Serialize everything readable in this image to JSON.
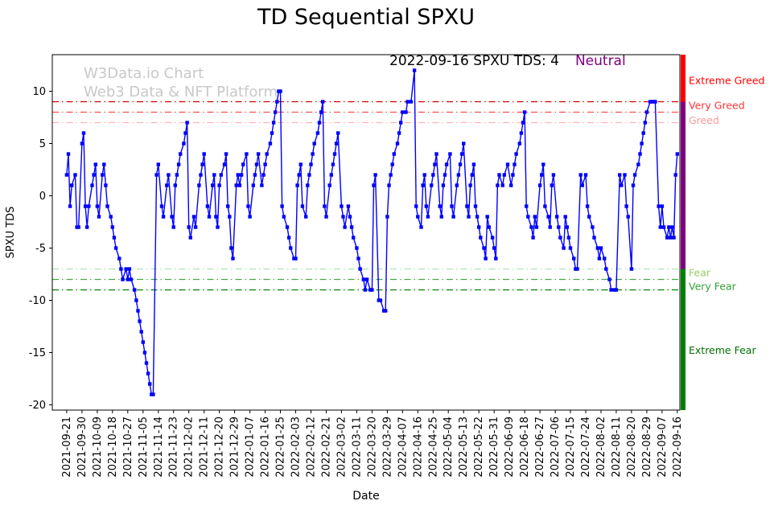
{
  "title": "TD Sequential SPXU",
  "watermark": {
    "line1": "W3Data.io Chart",
    "line2": "Web3 Data & NFT Platform"
  },
  "annotation": {
    "text": "2022-09-16 SPXU TDS: 4",
    "status": "Neutral",
    "status_color": "#800080"
  },
  "chart_data": {
    "type": "line",
    "title": "TD Sequential SPXU",
    "xlabel": "Date",
    "ylabel": "SPXU TDS",
    "ylim": [
      -20.5,
      13.5
    ],
    "yticks": [
      -20,
      -15,
      -10,
      -5,
      0,
      5,
      10
    ],
    "x_start_date": "2021-09-21",
    "tick_interval_days": 9,
    "x_tick_labels": [
      "2021-09-21",
      "2021-09-30",
      "2021-10-09",
      "2021-10-18",
      "2021-10-27",
      "2021-11-05",
      "2021-11-14",
      "2021-11-23",
      "2021-12-02",
      "2021-12-11",
      "2021-12-20",
      "2021-12-29",
      "2022-01-07",
      "2022-01-16",
      "2022-01-25",
      "2022-02-03",
      "2022-02-12",
      "2022-02-21",
      "2022-03-02",
      "2022-03-11",
      "2022-03-20",
      "2022-03-29",
      "2022-04-07",
      "2022-04-16",
      "2022-04-25",
      "2022-05-04",
      "2022-05-13",
      "2022-05-22",
      "2022-05-31",
      "2022-06-09",
      "2022-06-18",
      "2022-06-27",
      "2022-07-06",
      "2022-07-15",
      "2022-07-24",
      "2022-08-02",
      "2022-08-11",
      "2022-08-20",
      "2022-08-29",
      "2022-09-07",
      "2022-09-16"
    ],
    "line_color": "#0000ff",
    "marker": "square",
    "legend": "none",
    "grid": false,
    "thresholds": [
      {
        "value": 9,
        "color": "#cc0000"
      },
      {
        "value": 8,
        "color": "#ff4d4d"
      },
      {
        "value": 7,
        "color": "#ffb3b3"
      },
      {
        "value": -7,
        "color": "#b3e0b3"
      },
      {
        "value": -8,
        "color": "#44aa44"
      },
      {
        "value": -9,
        "color": "#008000"
      }
    ],
    "zone_labels": [
      {
        "text": "Extreme Greed",
        "value": 11.0,
        "color": "#ff0000"
      },
      {
        "text": "Very Greed",
        "value": 8.6,
        "color": "#ff3333"
      },
      {
        "text": "Greed",
        "value": 7.2,
        "color": "#ff9999"
      },
      {
        "text": "Fear",
        "value": -7.4,
        "color": "#99cc66"
      },
      {
        "text": "Very Fear",
        "value": -8.7,
        "color": "#33a033"
      },
      {
        "text": "Extreme Fear",
        "value": -14.8,
        "color": "#007000"
      }
    ],
    "side_bar_segments": [
      {
        "from": 13.5,
        "to": 9,
        "color": "#ff0000"
      },
      {
        "from": 9,
        "to": -7,
        "color": "#800080"
      },
      {
        "from": -7,
        "to": -20.5,
        "color": "#008000"
      }
    ],
    "points": [
      [
        0,
        2
      ],
      [
        1,
        4
      ],
      [
        2,
        -1
      ],
      [
        3,
        1
      ],
      [
        5,
        2
      ],
      [
        6,
        -3
      ],
      [
        7,
        -3
      ],
      [
        9,
        5
      ],
      [
        10,
        6
      ],
      [
        11,
        -1
      ],
      [
        12,
        -3
      ],
      [
        13,
        -1
      ],
      [
        15,
        1
      ],
      [
        16,
        2
      ],
      [
        17,
        3
      ],
      [
        18,
        -1
      ],
      [
        19,
        -2
      ],
      [
        21,
        2
      ],
      [
        22,
        3
      ],
      [
        23,
        1
      ],
      [
        24,
        -1
      ],
      [
        26,
        -2
      ],
      [
        27,
        -3
      ],
      [
        28,
        -4
      ],
      [
        29,
        -5
      ],
      [
        31,
        -6
      ],
      [
        32,
        -7
      ],
      [
        33,
        -8
      ],
      [
        35,
        -7
      ],
      [
        36,
        -8
      ],
      [
        37,
        -7
      ],
      [
        38,
        -8
      ],
      [
        40,
        -9
      ],
      [
        41,
        -10
      ],
      [
        42,
        -11
      ],
      [
        43,
        -12
      ],
      [
        44,
        -13
      ],
      [
        45,
        -14
      ],
      [
        46,
        -15
      ],
      [
        47,
        -16
      ],
      [
        48,
        -17
      ],
      [
        49,
        -18
      ],
      [
        50,
        -19
      ],
      [
        51,
        -19
      ],
      [
        53,
        2
      ],
      [
        54,
        3
      ],
      [
        56,
        -1
      ],
      [
        57,
        -2
      ],
      [
        59,
        1
      ],
      [
        60,
        2
      ],
      [
        62,
        -2
      ],
      [
        63,
        -3
      ],
      [
        64,
        1
      ],
      [
        65,
        2
      ],
      [
        66,
        3
      ],
      [
        67,
        4
      ],
      [
        69,
        5
      ],
      [
        70,
        6
      ],
      [
        71,
        7
      ],
      [
        72,
        -3
      ],
      [
        73,
        -4
      ],
      [
        75,
        -2
      ],
      [
        76,
        -3
      ],
      [
        78,
        1
      ],
      [
        79,
        2
      ],
      [
        80,
        3
      ],
      [
        81,
        4
      ],
      [
        83,
        -1
      ],
      [
        84,
        -2
      ],
      [
        86,
        1
      ],
      [
        87,
        2
      ],
      [
        88,
        -2
      ],
      [
        89,
        -3
      ],
      [
        90,
        1
      ],
      [
        91,
        2
      ],
      [
        93,
        3
      ],
      [
        94,
        4
      ],
      [
        95,
        -1
      ],
      [
        96,
        -2
      ],
      [
        97,
        -5
      ],
      [
        98,
        -6
      ],
      [
        100,
        1
      ],
      [
        101,
        2
      ],
      [
        102,
        1
      ],
      [
        103,
        2
      ],
      [
        104,
        3
      ],
      [
        106,
        4
      ],
      [
        107,
        -1
      ],
      [
        108,
        -2
      ],
      [
        110,
        1
      ],
      [
        111,
        2
      ],
      [
        112,
        3
      ],
      [
        113,
        4
      ],
      [
        115,
        1
      ],
      [
        116,
        2
      ],
      [
        117,
        3
      ],
      [
        118,
        4
      ],
      [
        120,
        5
      ],
      [
        121,
        6
      ],
      [
        122,
        7
      ],
      [
        123,
        8
      ],
      [
        124,
        9
      ],
      [
        125,
        10
      ],
      [
        126,
        10
      ],
      [
        127,
        -1
      ],
      [
        128,
        -2
      ],
      [
        130,
        -3
      ],
      [
        131,
        -4
      ],
      [
        132,
        -5
      ],
      [
        134,
        -6
      ],
      [
        135,
        -6
      ],
      [
        136,
        1
      ],
      [
        137,
        2
      ],
      [
        138,
        3
      ],
      [
        139,
        -1
      ],
      [
        141,
        -2
      ],
      [
        142,
        1
      ],
      [
        143,
        2
      ],
      [
        144,
        3
      ],
      [
        145,
        4
      ],
      [
        146,
        5
      ],
      [
        148,
        6
      ],
      [
        149,
        7
      ],
      [
        150,
        8
      ],
      [
        151,
        9
      ],
      [
        152,
        -1
      ],
      [
        153,
        -2
      ],
      [
        155,
        1
      ],
      [
        156,
        2
      ],
      [
        157,
        3
      ],
      [
        158,
        4
      ],
      [
        159,
        5
      ],
      [
        160,
        6
      ],
      [
        162,
        -1
      ],
      [
        163,
        -2
      ],
      [
        164,
        -3
      ],
      [
        166,
        -1
      ],
      [
        167,
        -2
      ],
      [
        168,
        -3
      ],
      [
        169,
        -4
      ],
      [
        171,
        -5
      ],
      [
        172,
        -6
      ],
      [
        173,
        -7
      ],
      [
        175,
        -8
      ],
      [
        176,
        -9
      ],
      [
        177,
        -8
      ],
      [
        179,
        -9
      ],
      [
        180,
        -9
      ],
      [
        181,
        1
      ],
      [
        182,
        2
      ],
      [
        184,
        -10
      ],
      [
        185,
        -10
      ],
      [
        187,
        -11
      ],
      [
        188,
        -11
      ],
      [
        189,
        -2
      ],
      [
        190,
        1
      ],
      [
        191,
        2
      ],
      [
        192,
        3
      ],
      [
        193,
        4
      ],
      [
        195,
        5
      ],
      [
        196,
        6
      ],
      [
        197,
        7
      ],
      [
        198,
        8
      ],
      [
        200,
        8
      ],
      [
        201,
        9
      ],
      [
        203,
        9
      ],
      [
        205,
        12
      ],
      [
        206,
        -1
      ],
      [
        207,
        -2
      ],
      [
        209,
        -3
      ],
      [
        210,
        1
      ],
      [
        211,
        2
      ],
      [
        212,
        -1
      ],
      [
        213,
        -2
      ],
      [
        215,
        1
      ],
      [
        216,
        2
      ],
      [
        217,
        3
      ],
      [
        218,
        4
      ],
      [
        220,
        -1
      ],
      [
        221,
        -2
      ],
      [
        222,
        1
      ],
      [
        223,
        2
      ],
      [
        224,
        3
      ],
      [
        226,
        4
      ],
      [
        227,
        -1
      ],
      [
        228,
        -2
      ],
      [
        230,
        1
      ],
      [
        231,
        2
      ],
      [
        232,
        3
      ],
      [
        233,
        4
      ],
      [
        234,
        5
      ],
      [
        236,
        -1
      ],
      [
        237,
        -2
      ],
      [
        238,
        1
      ],
      [
        239,
        2
      ],
      [
        240,
        3
      ],
      [
        241,
        -1
      ],
      [
        242,
        -2
      ],
      [
        243,
        -3
      ],
      [
        244,
        -4
      ],
      [
        246,
        -5
      ],
      [
        247,
        -6
      ],
      [
        248,
        -2
      ],
      [
        249,
        -3
      ],
      [
        251,
        -4
      ],
      [
        252,
        -5
      ],
      [
        253,
        -6
      ],
      [
        254,
        1
      ],
      [
        255,
        2
      ],
      [
        257,
        1
      ],
      [
        258,
        2
      ],
      [
        260,
        3
      ],
      [
        262,
        1
      ],
      [
        263,
        2
      ],
      [
        264,
        3
      ],
      [
        265,
        4
      ],
      [
        267,
        5
      ],
      [
        268,
        6
      ],
      [
        269,
        7
      ],
      [
        270,
        8
      ],
      [
        271,
        -1
      ],
      [
        272,
        -2
      ],
      [
        274,
        -3
      ],
      [
        275,
        -4
      ],
      [
        276,
        -2
      ],
      [
        277,
        -3
      ],
      [
        279,
        1
      ],
      [
        280,
        2
      ],
      [
        281,
        3
      ],
      [
        282,
        -1
      ],
      [
        284,
        -2
      ],
      [
        285,
        -3
      ],
      [
        286,
        1
      ],
      [
        287,
        2
      ],
      [
        289,
        -2
      ],
      [
        290,
        -3
      ],
      [
        291,
        -4
      ],
      [
        293,
        -5
      ],
      [
        294,
        -2
      ],
      [
        295,
        -3
      ],
      [
        296,
        -4
      ],
      [
        297,
        -5
      ],
      [
        299,
        -6
      ],
      [
        300,
        -7
      ],
      [
        301,
        -7
      ],
      [
        303,
        2
      ],
      [
        304,
        1
      ],
      [
        306,
        2
      ],
      [
        307,
        -1
      ],
      [
        308,
        -2
      ],
      [
        310,
        -3
      ],
      [
        311,
        -4
      ],
      [
        313,
        -5
      ],
      [
        314,
        -6
      ],
      [
        315,
        -5
      ],
      [
        317,
        -6
      ],
      [
        318,
        -7
      ],
      [
        320,
        -8
      ],
      [
        321,
        -9
      ],
      [
        323,
        -9
      ],
      [
        324,
        -9
      ],
      [
        326,
        2
      ],
      [
        327,
        1
      ],
      [
        329,
        2
      ],
      [
        330,
        -1
      ],
      [
        331,
        -2
      ],
      [
        333,
        -7
      ],
      [
        334,
        1
      ],
      [
        335,
        2
      ],
      [
        337,
        3
      ],
      [
        338,
        4
      ],
      [
        339,
        5
      ],
      [
        340,
        6
      ],
      [
        341,
        7
      ],
      [
        342,
        8
      ],
      [
        344,
        9
      ],
      [
        345,
        9
      ],
      [
        346,
        9
      ],
      [
        347,
        9
      ],
      [
        349,
        -1
      ],
      [
        350,
        -3
      ],
      [
        351,
        -1
      ],
      [
        352,
        -3
      ],
      [
        354,
        -4
      ],
      [
        355,
        -3
      ],
      [
        356,
        -4
      ],
      [
        357,
        -3
      ],
      [
        358,
        -4
      ],
      [
        359,
        2
      ],
      [
        360,
        4
      ]
    ]
  }
}
